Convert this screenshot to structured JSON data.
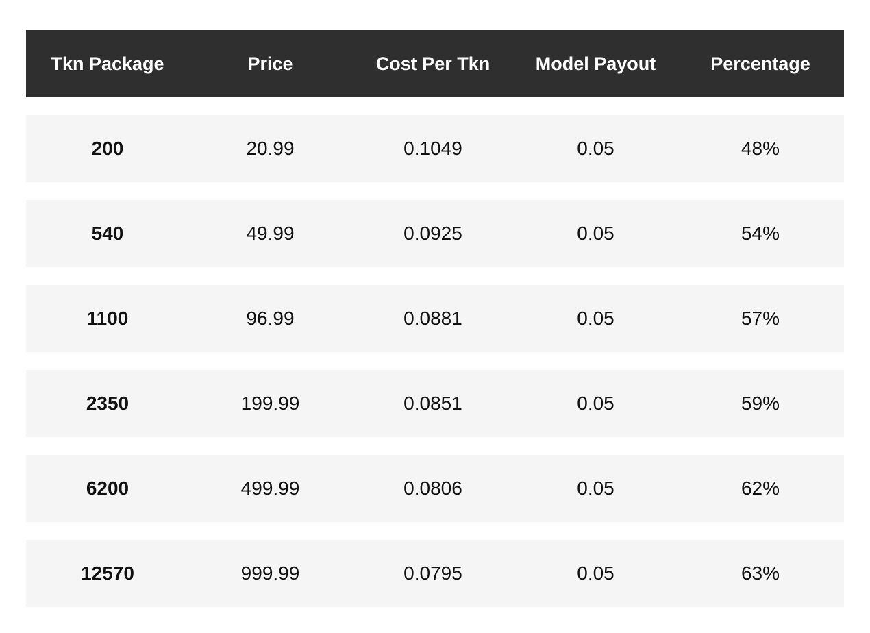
{
  "table": {
    "headers": [
      "Tkn Package",
      "Price",
      "Cost Per Tkn",
      "Model Payout",
      "Percentage"
    ],
    "rows": [
      [
        "200",
        "20.99",
        "0.1049",
        "0.05",
        "48%"
      ],
      [
        "540",
        "49.99",
        "0.0925",
        "0.05",
        "54%"
      ],
      [
        "1100",
        "96.99",
        "0.0881",
        "0.05",
        "57%"
      ],
      [
        "2350",
        "199.99",
        "0.0851",
        "0.05",
        "59%"
      ],
      [
        "6200",
        "499.99",
        "0.0806",
        "0.05",
        "62%"
      ],
      [
        "12570",
        "999.99",
        "0.0795",
        "0.05",
        "63%"
      ]
    ]
  },
  "colors": {
    "header_bg": "#2f2f2f",
    "header_text": "#ffffff",
    "row_bg": "#f5f5f5",
    "text": "#111111"
  }
}
